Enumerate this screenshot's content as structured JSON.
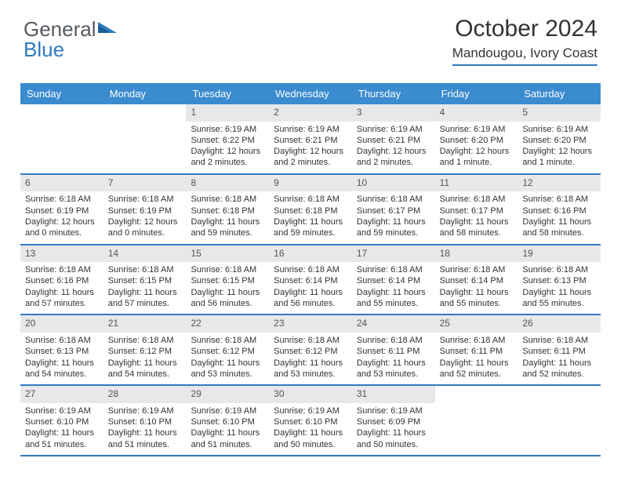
{
  "logo": {
    "text1": "General",
    "text2": "Blue"
  },
  "header": {
    "month_title": "October 2024",
    "location": "Mandougou, Ivory Coast"
  },
  "colors": {
    "accent": "#2f7bc2",
    "header_bg": "#3a8bcf",
    "daynum_bg": "#e8e8e8",
    "text": "#333333"
  },
  "calendar": {
    "day_headers": [
      "Sunday",
      "Monday",
      "Tuesday",
      "Wednesday",
      "Thursday",
      "Friday",
      "Saturday"
    ],
    "weeks": [
      [
        null,
        null,
        {
          "n": "1",
          "sr": "6:19 AM",
          "ss": "6:22 PM",
          "dl": "12 hours and 2 minutes."
        },
        {
          "n": "2",
          "sr": "6:19 AM",
          "ss": "6:21 PM",
          "dl": "12 hours and 2 minutes."
        },
        {
          "n": "3",
          "sr": "6:19 AM",
          "ss": "6:21 PM",
          "dl": "12 hours and 2 minutes."
        },
        {
          "n": "4",
          "sr": "6:19 AM",
          "ss": "6:20 PM",
          "dl": "12 hours and 1 minute."
        },
        {
          "n": "5",
          "sr": "6:19 AM",
          "ss": "6:20 PM",
          "dl": "12 hours and 1 minute."
        }
      ],
      [
        {
          "n": "6",
          "sr": "6:18 AM",
          "ss": "6:19 PM",
          "dl": "12 hours and 0 minutes."
        },
        {
          "n": "7",
          "sr": "6:18 AM",
          "ss": "6:19 PM",
          "dl": "12 hours and 0 minutes."
        },
        {
          "n": "8",
          "sr": "6:18 AM",
          "ss": "6:18 PM",
          "dl": "11 hours and 59 minutes."
        },
        {
          "n": "9",
          "sr": "6:18 AM",
          "ss": "6:18 PM",
          "dl": "11 hours and 59 minutes."
        },
        {
          "n": "10",
          "sr": "6:18 AM",
          "ss": "6:17 PM",
          "dl": "11 hours and 59 minutes."
        },
        {
          "n": "11",
          "sr": "6:18 AM",
          "ss": "6:17 PM",
          "dl": "11 hours and 58 minutes."
        },
        {
          "n": "12",
          "sr": "6:18 AM",
          "ss": "6:16 PM",
          "dl": "11 hours and 58 minutes."
        }
      ],
      [
        {
          "n": "13",
          "sr": "6:18 AM",
          "ss": "6:16 PM",
          "dl": "11 hours and 57 minutes."
        },
        {
          "n": "14",
          "sr": "6:18 AM",
          "ss": "6:15 PM",
          "dl": "11 hours and 57 minutes."
        },
        {
          "n": "15",
          "sr": "6:18 AM",
          "ss": "6:15 PM",
          "dl": "11 hours and 56 minutes."
        },
        {
          "n": "16",
          "sr": "6:18 AM",
          "ss": "6:14 PM",
          "dl": "11 hours and 56 minutes."
        },
        {
          "n": "17",
          "sr": "6:18 AM",
          "ss": "6:14 PM",
          "dl": "11 hours and 55 minutes."
        },
        {
          "n": "18",
          "sr": "6:18 AM",
          "ss": "6:14 PM",
          "dl": "11 hours and 55 minutes."
        },
        {
          "n": "19",
          "sr": "6:18 AM",
          "ss": "6:13 PM",
          "dl": "11 hours and 55 minutes."
        }
      ],
      [
        {
          "n": "20",
          "sr": "6:18 AM",
          "ss": "6:13 PM",
          "dl": "11 hours and 54 minutes."
        },
        {
          "n": "21",
          "sr": "6:18 AM",
          "ss": "6:12 PM",
          "dl": "11 hours and 54 minutes."
        },
        {
          "n": "22",
          "sr": "6:18 AM",
          "ss": "6:12 PM",
          "dl": "11 hours and 53 minutes."
        },
        {
          "n": "23",
          "sr": "6:18 AM",
          "ss": "6:12 PM",
          "dl": "11 hours and 53 minutes."
        },
        {
          "n": "24",
          "sr": "6:18 AM",
          "ss": "6:11 PM",
          "dl": "11 hours and 53 minutes."
        },
        {
          "n": "25",
          "sr": "6:18 AM",
          "ss": "6:11 PM",
          "dl": "11 hours and 52 minutes."
        },
        {
          "n": "26",
          "sr": "6:18 AM",
          "ss": "6:11 PM",
          "dl": "11 hours and 52 minutes."
        }
      ],
      [
        {
          "n": "27",
          "sr": "6:19 AM",
          "ss": "6:10 PM",
          "dl": "11 hours and 51 minutes."
        },
        {
          "n": "28",
          "sr": "6:19 AM",
          "ss": "6:10 PM",
          "dl": "11 hours and 51 minutes."
        },
        {
          "n": "29",
          "sr": "6:19 AM",
          "ss": "6:10 PM",
          "dl": "11 hours and 51 minutes."
        },
        {
          "n": "30",
          "sr": "6:19 AM",
          "ss": "6:10 PM",
          "dl": "11 hours and 50 minutes."
        },
        {
          "n": "31",
          "sr": "6:19 AM",
          "ss": "6:09 PM",
          "dl": "11 hours and 50 minutes."
        },
        null,
        null
      ]
    ],
    "labels": {
      "sunrise_prefix": "Sunrise: ",
      "sunset_prefix": "Sunset: ",
      "daylight_prefix": "Daylight: "
    }
  }
}
